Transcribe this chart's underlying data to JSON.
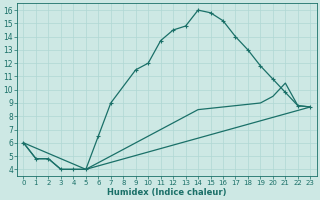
{
  "xlabel": "Humidex (Indice chaleur)",
  "bg_color": "#cde8e4",
  "line_color": "#1a7068",
  "grid_color": "#b0d8d4",
  "xlim": [
    -0.5,
    23.5
  ],
  "ylim": [
    3.5,
    16.5
  ],
  "xticks": [
    0,
    1,
    2,
    3,
    4,
    5,
    6,
    7,
    8,
    9,
    10,
    11,
    12,
    13,
    14,
    15,
    16,
    17,
    18,
    19,
    20,
    21,
    22,
    23
  ],
  "yticks": [
    4,
    5,
    6,
    7,
    8,
    9,
    10,
    11,
    12,
    13,
    14,
    15,
    16
  ],
  "main_curve_x": [
    0,
    1,
    2,
    3,
    4,
    5,
    6,
    7,
    9,
    10,
    11,
    12,
    13,
    14,
    15,
    16,
    17,
    18,
    19,
    20,
    21,
    22,
    23
  ],
  "main_curve_y": [
    6.0,
    4.8,
    4.8,
    4.0,
    4.0,
    4.0,
    6.5,
    9.0,
    11.5,
    12.0,
    13.7,
    14.5,
    14.8,
    16.0,
    15.8,
    15.2,
    14.0,
    13.0,
    11.8,
    10.8,
    9.8,
    8.8,
    8.7
  ],
  "line2_x": [
    0,
    1,
    2,
    3,
    4,
    5,
    23
  ],
  "line2_y": [
    6.0,
    4.8,
    4.8,
    4.0,
    4.0,
    4.0,
    8.7
  ],
  "line3_x": [
    0,
    5,
    14,
    19,
    20,
    21,
    22,
    23
  ],
  "line3_y": [
    6.0,
    4.0,
    8.5,
    9.0,
    9.5,
    10.5,
    8.8,
    8.7
  ],
  "marker": "+",
  "markersize": 3,
  "linewidth": 0.9,
  "xlabel_fontsize": 6,
  "tick_fontsize": 5
}
